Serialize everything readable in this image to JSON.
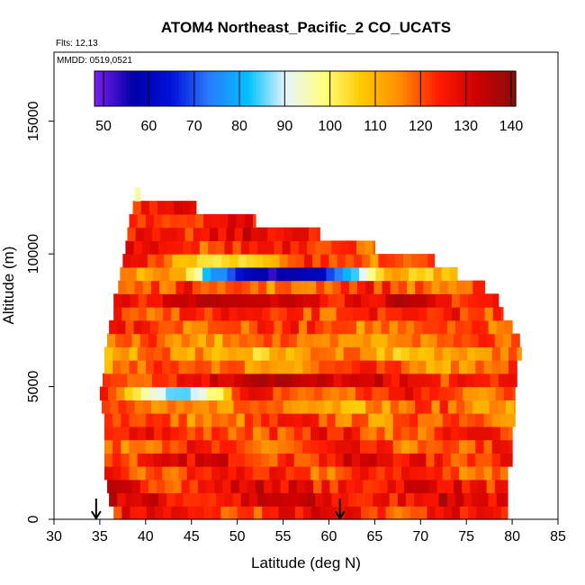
{
  "chart_data": {
    "type": "heatmap",
    "title": "ATOM4 Northeast_Pacific_2 CO_UCATS",
    "annotations": [
      "Flts: 12,13",
      "MMDD: 0519,0521"
    ],
    "xlabel": "Latitude (deg N)",
    "ylabel": "Altitude (m)",
    "xlim": [
      30,
      85
    ],
    "ylim": [
      0,
      17600
    ],
    "x_ticks": [
      30,
      35,
      40,
      45,
      50,
      55,
      60,
      65,
      70,
      75,
      80,
      85
    ],
    "y_ticks": [
      0,
      5000,
      10000,
      15000
    ],
    "colorbar": {
      "range": [
        48,
        141
      ],
      "ticks": [
        50,
        60,
        70,
        80,
        90,
        100,
        110,
        120,
        130,
        140
      ],
      "colors": [
        "#7b1ff0",
        "#0000a8",
        "#0011d8",
        "#2a7bff",
        "#00c0ff",
        "#e6f4ff",
        "#ffff7a",
        "#ffc800",
        "#ff8a00",
        "#ff1a00",
        "#cc0000",
        "#8a0d0d"
      ]
    },
    "markers": [
      {
        "type": "arrow-down",
        "x": 34.6,
        "y": 0
      },
      {
        "type": "arrow-down",
        "x": 61.2,
        "y": 0
      }
    ],
    "bands": [
      {
        "y": [
          0,
          500
        ],
        "x": [
          36.5,
          79.5
        ],
        "value": 124
      },
      {
        "y": [
          500,
          1000
        ],
        "x": [
          36.0,
          79.5
        ],
        "value": 128
      },
      {
        "y": [
          1000,
          1500
        ],
        "x": [
          35.8,
          79.5
        ],
        "value": 127
      },
      {
        "y": [
          1500,
          2000
        ],
        "x": [
          35.5,
          79.5
        ],
        "value": 122
      },
      {
        "y": [
          2000,
          2500
        ],
        "x": [
          35.5,
          80.0
        ],
        "value": 126
      },
      {
        "y": [
          2500,
          3000
        ],
        "x": [
          35.5,
          80.0
        ],
        "value": 120
      },
      {
        "y": [
          3000,
          3500
        ],
        "x": [
          35.5,
          80.0
        ],
        "value": 122
      },
      {
        "y": [
          3500,
          4000
        ],
        "x": [
          35.5,
          80.3
        ],
        "value": 119
      },
      {
        "y": [
          4000,
          4500
        ],
        "x": [
          35.2,
          80.3
        ],
        "value": 116
      },
      {
        "y": [
          4500,
          5000
        ],
        "x": [
          35.0,
          80.3
        ],
        "value": 121
      },
      {
        "y": [
          5000,
          5500
        ],
        "x": [
          35.3,
          80.5
        ],
        "value": 126
      },
      {
        "y": [
          5500,
          6000
        ],
        "x": [
          35.5,
          80.5
        ],
        "value": 118
      },
      {
        "y": [
          6000,
          6500
        ],
        "x": [
          35.5,
          81.0
        ],
        "value": 112
      },
      {
        "y": [
          6500,
          7000
        ],
        "x": [
          35.8,
          80.8
        ],
        "value": 117
      },
      {
        "y": [
          7000,
          7500
        ],
        "x": [
          36.0,
          80.0
        ],
        "value": 120
      },
      {
        "y": [
          7500,
          8000
        ],
        "x": [
          36.5,
          79.0
        ],
        "value": 124
      },
      {
        "y": [
          8000,
          8500
        ],
        "x": [
          36.5,
          78.5
        ],
        "value": 128
      },
      {
        "y": [
          8500,
          9000
        ],
        "x": [
          37.0,
          77.0
        ],
        "value": 120
      },
      {
        "y": [
          9000,
          9500
        ],
        "x": [
          37.2,
          74.0
        ],
        "value": 112
      },
      {
        "y": [
          9500,
          10000
        ],
        "x": [
          37.5,
          71.5
        ],
        "value": 121
      },
      {
        "y": [
          10000,
          10500
        ],
        "x": [
          37.8,
          65.0
        ],
        "value": 124
      },
      {
        "y": [
          10500,
          11000
        ],
        "x": [
          38.0,
          59.0
        ],
        "value": 126
      },
      {
        "y": [
          11000,
          11500
        ],
        "x": [
          38.2,
          52.0
        ],
        "value": 124
      },
      {
        "y": [
          11500,
          12000
        ],
        "x": [
          38.6,
          45.5
        ],
        "value": 127
      },
      {
        "y": [
          12000,
          12500
        ],
        "x": [
          38.8,
          39.4
        ],
        "value": 100
      }
    ],
    "anomalies": [
      {
        "y": [
          8850,
          9550
        ],
        "x": [
          44,
          67
        ],
        "center": [
          55,
          9180
        ],
        "value": 55
      },
      {
        "y": [
          4300,
          5200
        ],
        "x": [
          36.5,
          50
        ],
        "center": [
          43.5,
          4750
        ],
        "value": 86
      },
      {
        "y": [
          5100,
          5600
        ],
        "x": [
          48,
          63
        ],
        "center": [
          55,
          5350
        ],
        "value": 136
      },
      {
        "y": [
          9400,
          10000
        ],
        "x": [
          43,
          60
        ],
        "center": [
          49,
          9700
        ],
        "value": 104
      },
      {
        "y": [
          8000,
          8500
        ],
        "x": [
          40,
          62
        ],
        "center": [
          50,
          8250
        ],
        "value": 134
      },
      {
        "y": [
          12000,
          12500
        ],
        "x": [
          37.9,
          38.8
        ],
        "center": [
          38.35,
          12250
        ],
        "value": 92
      }
    ]
  }
}
